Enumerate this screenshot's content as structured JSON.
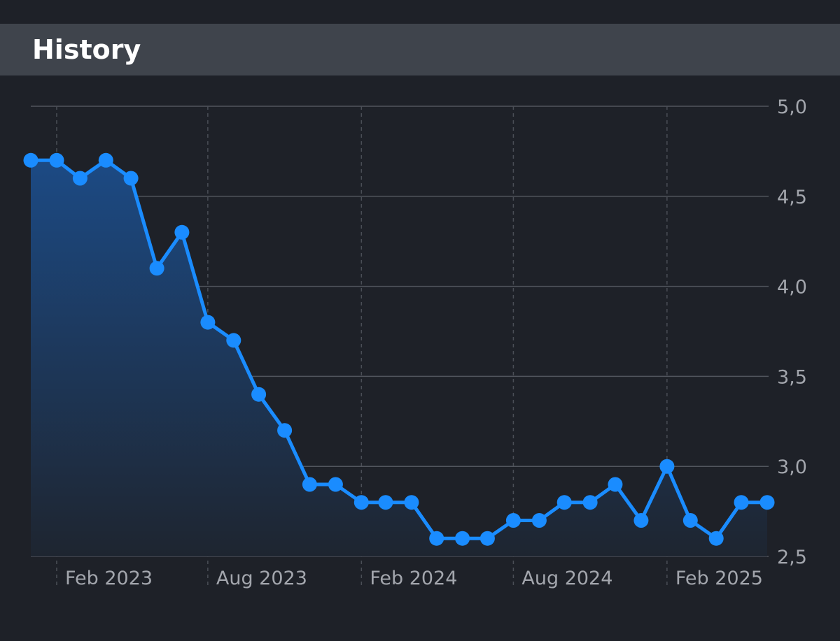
{
  "header": {
    "title": "History"
  },
  "chart_data": {
    "type": "line",
    "title": "",
    "xlabel": "",
    "ylabel": "",
    "fill": "area",
    "grid": true,
    "ylim": [
      2.5,
      5.0
    ],
    "xlim": [
      "2023-01-01",
      "2025-06-01"
    ],
    "y_ticks": [
      5.0,
      4.5,
      4.0,
      3.5,
      3.0,
      2.5
    ],
    "y_tick_labels": [
      "5,0",
      "4,5",
      "4,0",
      "3,5",
      "3,0",
      "2,5"
    ],
    "x_ticks": [
      "2023-02-01",
      "2023-08-01",
      "2024-02-01",
      "2024-08-01",
      "2025-02-01"
    ],
    "x_tick_labels": [
      "Feb 2023",
      "Aug 2023",
      "Feb 2024",
      "Aug 2024",
      "Feb 2025"
    ],
    "colors": {
      "line": "#1a8cff",
      "point": "#1a8cff",
      "fill_top": "#1c4a84",
      "fill_bottom": "#1e2530"
    },
    "series": [
      {
        "x": [
          "2023-01-01",
          "2023-02-01",
          "2023-03-01",
          "2023-04-01",
          "2023-05-01",
          "2023-06-01",
          "2023-07-01",
          "2023-08-01",
          "2023-09-01",
          "2023-10-01",
          "2023-11-01",
          "2023-12-01",
          "2024-01-01",
          "2024-02-01",
          "2024-03-01",
          "2024-04-01",
          "2024-05-01",
          "2024-06-01",
          "2024-07-01",
          "2024-08-01",
          "2024-09-01",
          "2024-10-01",
          "2024-11-01",
          "2024-12-01",
          "2025-01-01",
          "2025-02-01",
          "2025-03-01",
          "2025-04-01",
          "2025-05-01",
          "2025-06-01"
        ],
        "values": [
          4.7,
          4.7,
          4.6,
          4.7,
          4.6,
          4.1,
          4.3,
          3.8,
          3.7,
          3.4,
          3.2,
          2.9,
          2.9,
          2.8,
          2.8,
          2.8,
          2.6,
          2.6,
          2.6,
          2.7,
          2.7,
          2.8,
          2.8,
          2.9,
          2.7,
          3.0,
          2.7,
          2.6,
          2.8,
          2.8
        ]
      }
    ]
  }
}
